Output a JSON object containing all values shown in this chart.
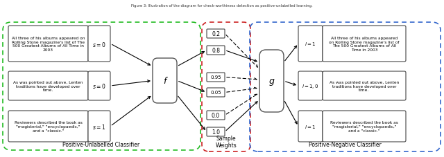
{
  "left_label": "Positive-Unlabelled Classifier",
  "middle_label": "Sample\nWeights",
  "right_label": "Positive-Negative Classifier",
  "left_border_color": "#22bb22",
  "middle_border_color": "#cc2222",
  "right_border_color": "#3366cc",
  "bg_color": "#ffffff",
  "text_left_1": "Reviewers described the book as\n\"magisterial,\" \"encyclopaedic,\"\nand a \"classic.\"",
  "text_left_2": "As was pointed out above, Lenten\ntraditions have developed over\ntime.",
  "text_left_3": "All three of his albums appeared on\nRolling Stone magazine's list of The\n500 Greatest Albums of All Time in\n2003",
  "label_left": [
    "s = 1",
    "s = 0",
    "s = 0"
  ],
  "text_right_1": "Reviewers described the book as\n\"magisterial,\" \"encyclopaedic,\"\nand a \"classic.\"",
  "text_right_2": "As was pointed out above, Lenten\ntraditions have developed over\ntime.",
  "text_right_3": "All three of his albums appeared\non Rolling Stone magazine's list of\nThe 500 Greatest Albums of All\nTime in 2003",
  "label_right": [
    "l = 1",
    "l = 1, 0",
    "l = 1"
  ],
  "weights": [
    "1.0",
    "0.0",
    "0.05",
    "0.95",
    "0.8",
    "0.2"
  ],
  "f_label": "f",
  "g_label": "g"
}
